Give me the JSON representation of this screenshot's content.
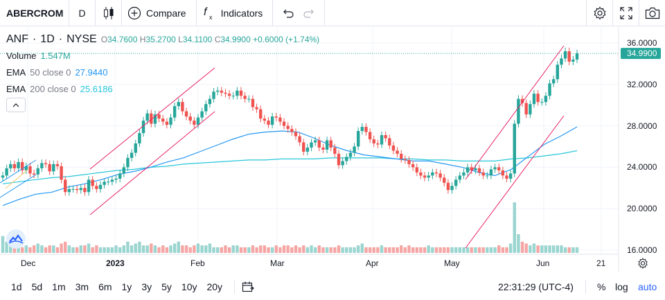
{
  "toolbar": {
    "symbol": "ABERCROM",
    "interval": "D",
    "chart_type_icon": "candles-icon",
    "compare_label": "Compare",
    "indicators_label": "Indicators",
    "right_icons": [
      "settings-icon",
      "fullscreen-icon",
      "camera-icon"
    ]
  },
  "legend": {
    "ticker": "ANF",
    "interval": "1D",
    "exchange": "NYSE",
    "open_label": "O",
    "open": "34.7600",
    "high_label": "H",
    "high": "35.2700",
    "low_label": "L",
    "low": "34.1100",
    "close_label": "C",
    "close": "34.9900",
    "change": "+0.6000 (+1.74%)",
    "volume_label": "Volume",
    "volume_value": "1.547M",
    "ema50_label": "EMA",
    "ema50_args": "50 close 0",
    "ema50_value": "27.9440",
    "ema200_label": "EMA",
    "ema200_args": "200 close 0",
    "ema200_value": "25.6186"
  },
  "price_axis": {
    "ticks": [
      "36.0000",
      "32.0000",
      "28.0000",
      "24.0000",
      "20.0000",
      "16.0000"
    ],
    "last_price": "34.9900"
  },
  "time_axis": {
    "ticks": [
      "Dec",
      "2023",
      "Feb",
      "Mar",
      "Apr",
      "May",
      "Jun",
      "21"
    ]
  },
  "bottom": {
    "ranges": [
      "1d",
      "5d",
      "1m",
      "3m",
      "6m",
      "1y",
      "3y",
      "5y",
      "10y",
      "20y"
    ],
    "time": "22:31:29 (UTC-4)",
    "percent": "%",
    "log": "log",
    "auto": "auto"
  },
  "colors": {
    "up": "#26a69a",
    "down": "#ef5350",
    "ema50": "#2196f3",
    "ema200": "#26c6da",
    "channel": "#e91e63",
    "accent": "#2962ff"
  },
  "chart_data": {
    "type": "candlestick",
    "ylim": [
      16,
      36
    ],
    "closes": [
      23.2,
      23.9,
      24.3,
      23.9,
      24.5,
      23.7,
      24.1,
      23.4,
      23.3,
      23.9,
      24.4,
      24.3,
      23.6,
      24.3,
      24.1,
      22.8,
      21.6,
      21.9,
      21.9,
      21.8,
      22.0,
      21.6,
      22.8,
      22.2,
      21.9,
      22.3,
      22.6,
      22.6,
      22.8,
      22.9,
      23.4,
      24.0,
      24.9,
      25.4,
      26.3,
      27.3,
      28.5,
      29.2,
      28.2,
      29.1,
      28.7,
      28.4,
      28.1,
      28.8,
      29.9,
      30.3,
      29.4,
      28.9,
      28.5,
      28.1,
      28.8,
      29.4,
      30.1,
      30.6,
      31.3,
      31.4,
      31.2,
      31.1,
      30.9,
      30.9,
      31.4,
      30.9,
      30.6,
      30.6,
      29.8,
      29.6,
      28.7,
      28.5,
      28.1,
      28.9,
      28.8,
      28.4,
      28.0,
      27.7,
      27.4,
      27.0,
      26.4,
      25.5,
      25.9,
      26.4,
      26.6,
      25.9,
      25.7,
      26.6,
      25.9,
      25.3,
      24.2,
      24.6,
      25.0,
      25.4,
      26.0,
      27.5,
      27.9,
      27.4,
      26.7,
      26.3,
      26.2,
      27.1,
      26.8,
      26.1,
      25.6,
      25.3,
      24.8,
      24.7,
      24.3,
      24.0,
      23.5,
      23.2,
      23.0,
      23.2,
      23.5,
      23.4,
      23.0,
      22.5,
      21.8,
      22.2,
      22.8,
      23.2,
      23.5,
      24.0,
      23.7,
      23.9,
      23.5,
      23.2,
      23.2,
      23.8,
      24.0,
      23.7,
      23.2,
      22.9,
      23.4,
      28.2,
      30.6,
      30.2,
      29.1,
      30.1,
      31.1,
      30.3,
      30.3,
      30.9,
      32.1,
      32.5,
      33.9,
      34.5,
      35.2,
      34.2,
      34.4,
      35.0
    ],
    "ema50": [
      20.3,
      20.9,
      21.4,
      21.6,
      22.1,
      22.4,
      22.8,
      23.3,
      23.6,
      24.0,
      24.5,
      24.9,
      25.5,
      26.1,
      26.7,
      27.2,
      27.4,
      27.5,
      27.4,
      26.8,
      26.1,
      25.6,
      25.2,
      25.0,
      24.8,
      24.6,
      24.6,
      24.3,
      24.0,
      23.5,
      23.2,
      23.8,
      25.0,
      26.2,
      27.0,
      27.9
    ],
    "ema200": [
      22.4,
      22.6,
      22.8,
      23.0,
      23.1,
      23.3,
      23.5,
      23.7,
      23.8,
      24.0,
      24.1,
      24.3,
      24.4,
      24.5,
      24.6,
      24.7,
      24.7,
      24.8,
      24.8,
      24.8,
      24.9,
      24.9,
      24.9,
      24.9,
      24.8,
      24.8,
      24.7,
      24.7,
      24.6,
      24.6,
      24.6,
      24.8,
      24.9,
      25.1,
      25.3,
      25.6
    ],
    "volumes": [
      0.9,
      0.6,
      0.5,
      0.4,
      0.5,
      0.3,
      0.4,
      0.3,
      0.4,
      0.5,
      0.4,
      0.3,
      0.4,
      0.4,
      0.3,
      0.5,
      0.6,
      0.4,
      0.3,
      0.3,
      0.4,
      0.4,
      0.5,
      0.3,
      0.4,
      0.3,
      0.3,
      0.3,
      0.3,
      0.4,
      0.3,
      0.4,
      0.6,
      0.4,
      0.5,
      0.6,
      0.4,
      0.4,
      0.5,
      0.4,
      0.3,
      0.4,
      0.3,
      0.4,
      0.5,
      0.6,
      0.4,
      0.4,
      0.3,
      0.4,
      0.5,
      0.4,
      0.4,
      0.5,
      0.3,
      0.3,
      0.3,
      0.4,
      0.3,
      0.4,
      0.4,
      0.3,
      0.3,
      0.3,
      0.4,
      0.3,
      0.4,
      0.4,
      0.3,
      0.3,
      0.4,
      0.3,
      0.4,
      0.4,
      0.3,
      0.4,
      0.3,
      0.4,
      0.3,
      0.4,
      0.3,
      0.4,
      0.3,
      0.3,
      0.3,
      0.3,
      0.4,
      0.3,
      0.3,
      0.3,
      0.3,
      0.4,
      0.5,
      0.3,
      0.3,
      0.3,
      0.3,
      0.4,
      0.3,
      0.3,
      0.3,
      0.3,
      0.4,
      0.3,
      0.4,
      0.3,
      0.3,
      0.3,
      0.3,
      0.4,
      0.3,
      0.3,
      0.3,
      0.3,
      0.3,
      0.3,
      0.3,
      0.3,
      0.3,
      0.3,
      0.3,
      0.3,
      0.3,
      0.3,
      0.3,
      0.3,
      0.3,
      0.4,
      0.3,
      0.3,
      0.5,
      2.7,
      1.0,
      0.6,
      0.5,
      0.4,
      0.5,
      0.4,
      0.4,
      0.4,
      0.4,
      0.4,
      0.4,
      0.4,
      0.3,
      0.3,
      0.3,
      0.3
    ]
  }
}
